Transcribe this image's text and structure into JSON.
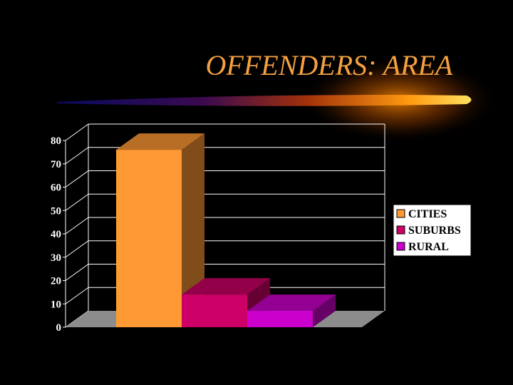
{
  "slide": {
    "title": "OFFENDERS:  AREA"
  },
  "chart_data": {
    "type": "bar",
    "style": "3d",
    "categories": [
      "CITIES",
      "SUBURBS",
      "RURAL"
    ],
    "values": [
      76,
      14,
      7
    ],
    "colors": [
      "#ff9933",
      "#cc0066",
      "#cc00cc"
    ],
    "ylim": [
      0,
      80
    ],
    "yticks": [
      0,
      10,
      20,
      30,
      40,
      50,
      60,
      70,
      80
    ],
    "grid": true,
    "legend": {
      "position": "right",
      "entries": [
        "CITIES",
        "SUBURBS",
        "RURAL"
      ]
    },
    "title": "",
    "xlabel": "",
    "ylabel": ""
  }
}
